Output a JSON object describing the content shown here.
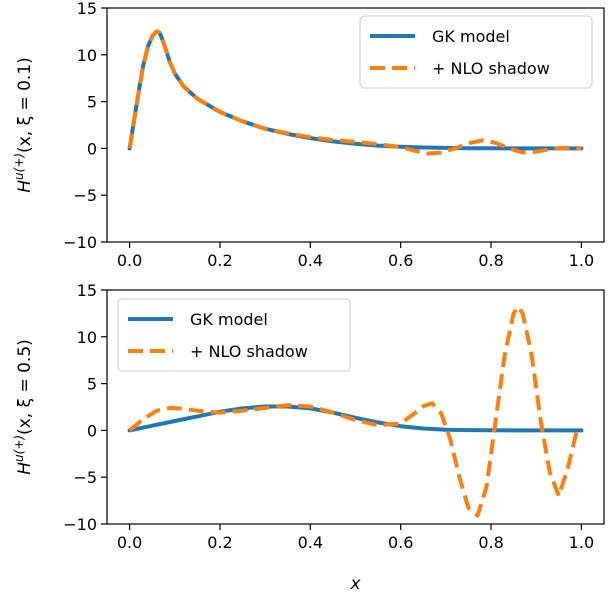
{
  "chart_data": [
    {
      "type": "line",
      "ylabel": "H^{u(+)}(x, ξ = 0.1)",
      "ylabel_parts": {
        "base": "H",
        "sup": "u(+)",
        "args": "(x, ξ = 0.1)"
      },
      "xlabel": "",
      "xlim": [
        -0.05,
        1.05
      ],
      "ylim": [
        -10,
        15
      ],
      "xticks": [
        "0.0",
        "0.2",
        "0.4",
        "0.6",
        "0.8",
        "1.0"
      ],
      "yticks": [
        "−10",
        "−5",
        "0",
        "5",
        "10",
        "15"
      ],
      "legend_position": "top-right",
      "series": [
        {
          "name": "GK model",
          "color": "#1f77b4",
          "style": "solid",
          "x": [
            0.0,
            0.01,
            0.02,
            0.03,
            0.04,
            0.05,
            0.06,
            0.065,
            0.07,
            0.08,
            0.09,
            0.1,
            0.12,
            0.15,
            0.2,
            0.25,
            0.3,
            0.35,
            0.4,
            0.45,
            0.5,
            0.55,
            0.6,
            0.65,
            0.7,
            0.75,
            0.8,
            0.85,
            0.9,
            0.95,
            1.0
          ],
          "y": [
            0.0,
            3.0,
            6.0,
            8.8,
            10.8,
            12.0,
            12.5,
            12.4,
            12.0,
            10.6,
            9.1,
            8.0,
            6.6,
            5.3,
            3.9,
            2.9,
            2.1,
            1.55,
            1.1,
            0.75,
            0.5,
            0.3,
            0.18,
            0.1,
            0.05,
            0.02,
            0.01,
            0.0,
            0.0,
            0.0,
            0.0
          ]
        },
        {
          "name": "+ NLO shadow",
          "color": "#ff7f0e",
          "style": "dashed",
          "x": [
            0.0,
            0.01,
            0.02,
            0.03,
            0.04,
            0.05,
            0.06,
            0.065,
            0.07,
            0.08,
            0.09,
            0.1,
            0.12,
            0.15,
            0.2,
            0.25,
            0.3,
            0.35,
            0.4,
            0.45,
            0.5,
            0.55,
            0.6,
            0.63,
            0.66,
            0.69,
            0.72,
            0.75,
            0.78,
            0.81,
            0.84,
            0.87,
            0.9,
            0.93,
            0.96,
            0.98,
            1.0
          ],
          "y": [
            0.0,
            3.0,
            6.0,
            8.8,
            10.8,
            12.0,
            12.5,
            12.4,
            12.0,
            10.6,
            9.1,
            8.0,
            6.6,
            5.3,
            3.9,
            2.9,
            2.1,
            1.6,
            1.2,
            0.9,
            0.7,
            0.45,
            0.15,
            -0.25,
            -0.55,
            -0.45,
            0.0,
            0.55,
            0.85,
            0.6,
            0.0,
            -0.45,
            -0.35,
            -0.1,
            0.05,
            0.05,
            0.0
          ]
        }
      ]
    },
    {
      "type": "line",
      "ylabel": "H^{u(+)}(x, ξ = 0.5)",
      "ylabel_parts": {
        "base": "H",
        "sup": "u(+)",
        "args": "(x, ξ = 0.5)"
      },
      "xlabel": "x",
      "xlim": [
        -0.05,
        1.05
      ],
      "ylim": [
        -10,
        15
      ],
      "xticks": [
        "0.0",
        "0.2",
        "0.4",
        "0.6",
        "0.8",
        "1.0"
      ],
      "yticks": [
        "−10",
        "−5",
        "0",
        "5",
        "10",
        "15"
      ],
      "legend_position": "top-left",
      "series": [
        {
          "name": "GK model",
          "color": "#1f77b4",
          "style": "solid",
          "x": [
            0.0,
            0.05,
            0.1,
            0.15,
            0.2,
            0.25,
            0.3,
            0.35,
            0.4,
            0.45,
            0.5,
            0.55,
            0.6,
            0.65,
            0.7,
            0.75,
            0.8,
            0.85,
            0.9,
            0.95,
            1.0
          ],
          "y": [
            0.0,
            0.5,
            1.0,
            1.5,
            2.0,
            2.35,
            2.55,
            2.55,
            2.35,
            1.9,
            1.35,
            0.85,
            0.45,
            0.2,
            0.08,
            0.03,
            0.01,
            0.0,
            0.0,
            0.0,
            0.0
          ]
        },
        {
          "name": "+ NLO shadow",
          "color": "#ff7f0e",
          "style": "dashed",
          "x": [
            0.0,
            0.03,
            0.06,
            0.09,
            0.12,
            0.15,
            0.2,
            0.25,
            0.3,
            0.35,
            0.4,
            0.45,
            0.5,
            0.55,
            0.6,
            0.63,
            0.65,
            0.67,
            0.69,
            0.71,
            0.73,
            0.75,
            0.77,
            0.79,
            0.81,
            0.83,
            0.85,
            0.86,
            0.87,
            0.89,
            0.91,
            0.93,
            0.95,
            0.97,
            0.99
          ],
          "y": [
            0.0,
            1.2,
            2.1,
            2.4,
            2.3,
            2.1,
            1.9,
            2.1,
            2.4,
            2.7,
            2.55,
            1.9,
            1.1,
            0.55,
            0.75,
            1.8,
            2.6,
            2.9,
            1.8,
            -1.0,
            -5.0,
            -8.3,
            -9.1,
            -6.0,
            1.0,
            8.0,
            12.5,
            13.2,
            12.5,
            8.0,
            1.0,
            -4.5,
            -7.0,
            -4.0,
            0.0
          ]
        }
      ]
    }
  ]
}
